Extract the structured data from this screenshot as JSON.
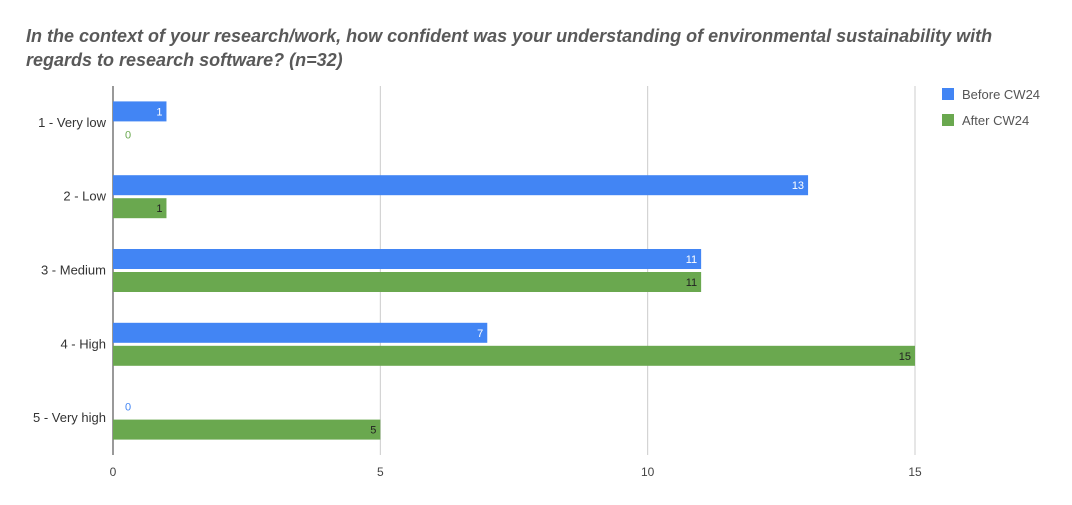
{
  "chart_data": {
    "type": "bar",
    "orientation": "horizontal",
    "title": "In the context of your research/work, how confident was your understanding of environmental sustainability with regards to research software? (n=32)",
    "categories": [
      "1 - Very low",
      "2 - Low",
      "3 - Medium",
      "4 - High",
      "5 - Very high"
    ],
    "series": [
      {
        "name": "Before CW24",
        "color": "#4285f4",
        "values": [
          1,
          13,
          11,
          7,
          0
        ]
      },
      {
        "name": "After CW24",
        "color": "#6aa84f",
        "values": [
          0,
          1,
          11,
          15,
          5
        ]
      }
    ],
    "xlim": [
      0,
      15
    ],
    "xticks": [
      0,
      5,
      10,
      15
    ],
    "grid": true,
    "legend": "top-right"
  }
}
